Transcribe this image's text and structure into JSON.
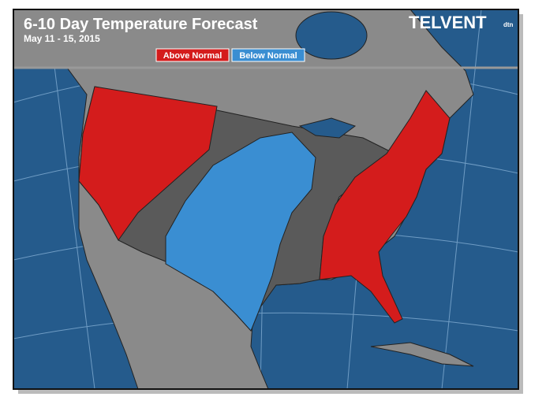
{
  "header": {
    "title": "6-10 Day Temperature Forecast",
    "date": "May 11 - 15, 2015"
  },
  "legend": {
    "items": [
      {
        "label": "Above Normal",
        "color": "#d41c1c"
      },
      {
        "label": "Below Normal",
        "color": "#3a8ed2"
      }
    ]
  },
  "logo": {
    "brand": "TELVENT",
    "sub": "dtn"
  }
}
